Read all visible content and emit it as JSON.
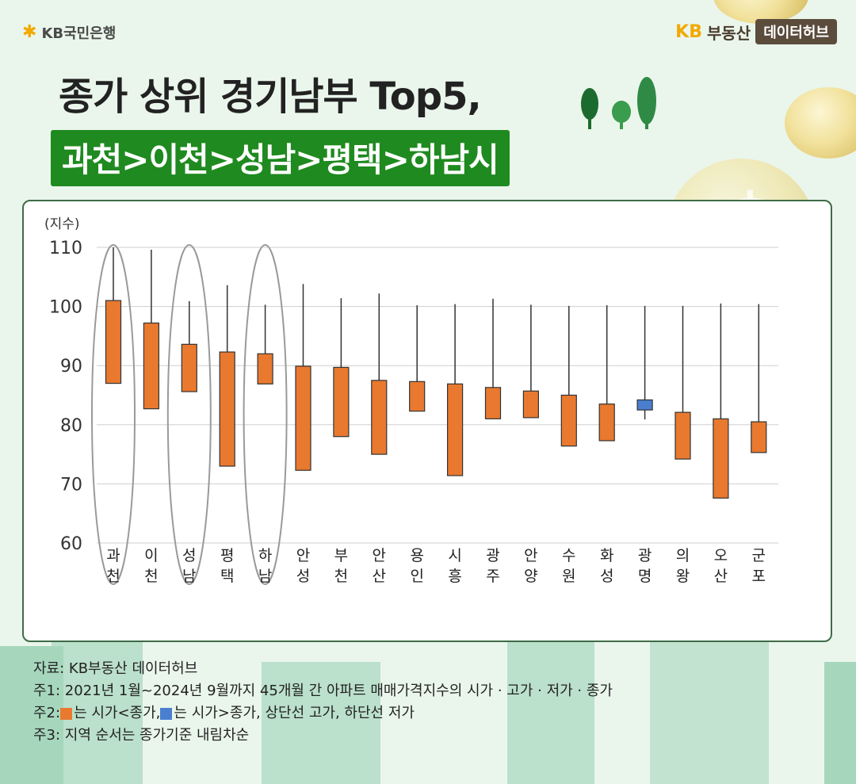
{
  "brand": {
    "bank_name": "KB국민은행",
    "product_kb": "KB",
    "product_name": "부동산",
    "product_hub": "데이터허브"
  },
  "title": {
    "line1": "종가 상위 경기남부 Top5,",
    "line2": "과천>이천>성남>평택>하남시"
  },
  "colors": {
    "up": "#e8792f",
    "down": "#4a7fd0",
    "highlight_box": "#1f8a1f",
    "frame": "#3e6b47"
  },
  "chart_data": {
    "type": "candlestick",
    "ylabel": "(지수)",
    "ylim": [
      60,
      110
    ],
    "yticks": [
      60,
      70,
      80,
      90,
      100,
      110
    ],
    "grid": true,
    "categories": [
      [
        "과",
        "천"
      ],
      [
        "이",
        "천"
      ],
      [
        "성",
        "남"
      ],
      [
        "평",
        "택"
      ],
      [
        "하",
        "남"
      ],
      [
        "안",
        "성"
      ],
      [
        "부",
        "천"
      ],
      [
        "안",
        "산"
      ],
      [
        "용",
        "인"
      ],
      [
        "시",
        "흥"
      ],
      [
        "광",
        "주"
      ],
      [
        "안",
        "양"
      ],
      [
        "수",
        "원"
      ],
      [
        "화",
        "성"
      ],
      [
        "광",
        "명"
      ],
      [
        "의",
        "왕"
      ],
      [
        "오",
        "산"
      ],
      [
        "군",
        "포"
      ]
    ],
    "open": [
      87.0,
      82.7,
      85.6,
      73.0,
      86.9,
      72.3,
      78.0,
      75.0,
      82.3,
      71.4,
      81.0,
      81.2,
      76.4,
      77.3,
      84.2,
      74.2,
      67.6,
      75.3
    ],
    "high": [
      110.0,
      109.6,
      100.9,
      103.6,
      100.3,
      103.8,
      101.4,
      102.2,
      100.2,
      100.4,
      101.3,
      100.3,
      100.1,
      100.2,
      100.1,
      100.1,
      100.5,
      100.4
    ],
    "low": [
      87.0,
      82.7,
      85.6,
      73.0,
      86.9,
      72.3,
      78.0,
      75.0,
      82.3,
      71.4,
      81.0,
      81.2,
      76.4,
      77.3,
      80.9,
      74.2,
      67.6,
      75.3
    ],
    "close": [
      101.0,
      97.2,
      93.6,
      92.3,
      92.0,
      89.9,
      89.7,
      87.5,
      87.3,
      86.9,
      86.3,
      85.7,
      85.0,
      83.5,
      82.5,
      82.1,
      81.0,
      80.5
    ],
    "highlighted": [
      0,
      2,
      4
    ]
  },
  "notes": {
    "source": "자료: KB부동산 데이터허브",
    "note1": "주1: 2021년 1월~2024년 9월까지 45개월 간 아파트 매매가격지수의 시가 · 고가 · 저가 · 종가",
    "note2_prefix": "주2: ",
    "note2_up": "는 시가<종가, ",
    "note2_down": "는 시가>종가, 상단선 고가, 하단선 저가",
    "note3": "주3: 지역 순서는 종가기준 내림차순"
  }
}
